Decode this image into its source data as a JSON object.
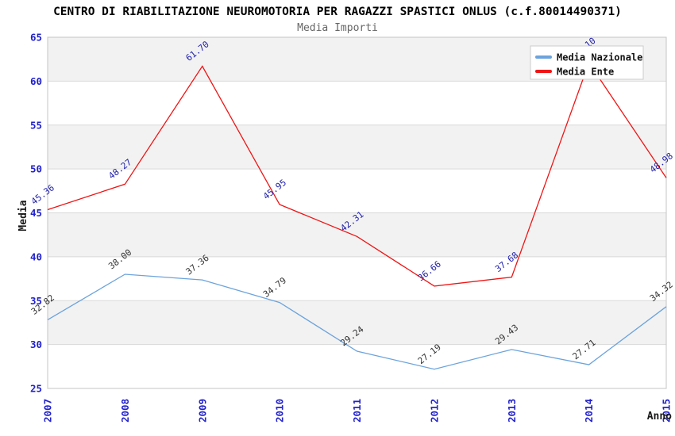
{
  "chart_data": {
    "type": "line",
    "title": "CENTRO DI RIABILITAZIONE NEUROMOTORIA PER RAGAZZI SPASTICI ONLUS (c.f.80014490371)",
    "subtitle": "Media Importi",
    "xlabel": "Anno",
    "ylabel": "Media",
    "x": [
      "2007",
      "2008",
      "2009",
      "2010",
      "2011",
      "2012",
      "2013",
      "2014",
      "2015"
    ],
    "series": [
      {
        "name": "Media Nazionale",
        "color": "#6ba3dc",
        "label_color": "#333333",
        "values": [
          32.82,
          38.0,
          37.36,
          34.79,
          29.24,
          27.19,
          29.43,
          27.71,
          34.32
        ]
      },
      {
        "name": "Media Ente",
        "color": "#ee1515",
        "label_color": "#2222aa",
        "values": [
          45.36,
          48.27,
          61.7,
          45.95,
          42.31,
          36.66,
          37.68,
          62.1,
          48.98
        ]
      }
    ],
    "ylim": [
      25,
      65
    ],
    "yticks": [
      25,
      30,
      35,
      40,
      45,
      50,
      55,
      60,
      65
    ],
    "grid": "horizontal, alternating shaded bands",
    "legend_position": "top-right",
    "colors": {
      "tick_label": "#2222cc",
      "band": "#f2f2f2",
      "grid": "#d9d9d9",
      "border": "#c4c4c4",
      "axis_title": "#1a1a1a",
      "legend_text": "#111111",
      "legend_border": "#cccccc",
      "background": "#ffffff"
    }
  }
}
